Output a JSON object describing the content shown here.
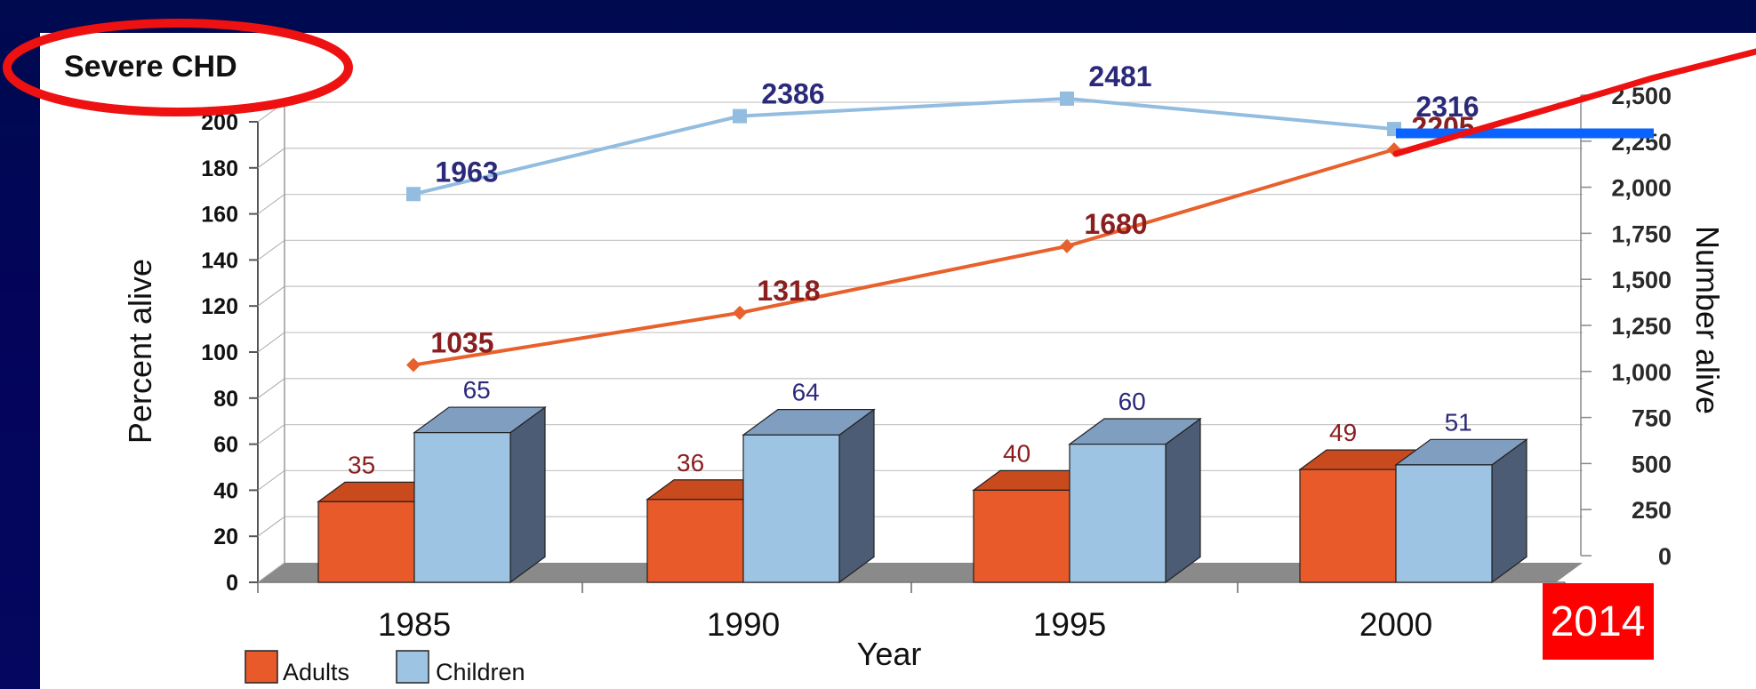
{
  "title": "Severe CHD",
  "badge": "2014",
  "colors": {
    "adults": "#e85a2a",
    "adults_top": "#c94a1d",
    "children": "#9ec4e4",
    "children_top": "#7f9ec0",
    "children_side": "#4b5c74",
    "adults_line": "#e8612c",
    "children_line": "#93bde0",
    "annotation_red": "#ee1111",
    "annotation_blue": "#0a62ff",
    "adult_label": "#8a1f20",
    "child_label": "#2b2a7a"
  },
  "chart_data": {
    "type": "bar",
    "categories": [
      "1985",
      "1990",
      "1995",
      "2000"
    ],
    "xlabel": "Year",
    "ylabel": "Percent alive",
    "ylabel_right": "Number alive",
    "ylim": [
      0,
      200
    ],
    "ylim_right": [
      0,
      2500
    ],
    "yticks": [
      "0",
      "20",
      "40",
      "60",
      "80",
      "100",
      "120",
      "140",
      "160",
      "180",
      "200"
    ],
    "yticks_right": [
      "0",
      "250",
      "500",
      "750",
      "1,000",
      "1,250",
      "1,500",
      "1,750",
      "2,000",
      "2,250",
      "2,500"
    ],
    "bar_series": [
      {
        "name": "Adults",
        "values": [
          35,
          36,
          40,
          49
        ]
      },
      {
        "name": "Children",
        "values": [
          65,
          64,
          60,
          51
        ]
      }
    ],
    "line_series": [
      {
        "values": [
          1035,
          1318,
          1680,
          2205
        ]
      },
      {
        "values": [
          1963,
          2386,
          2481,
          2316
        ]
      }
    ],
    "legend": [
      "Adults",
      "Children"
    ]
  }
}
